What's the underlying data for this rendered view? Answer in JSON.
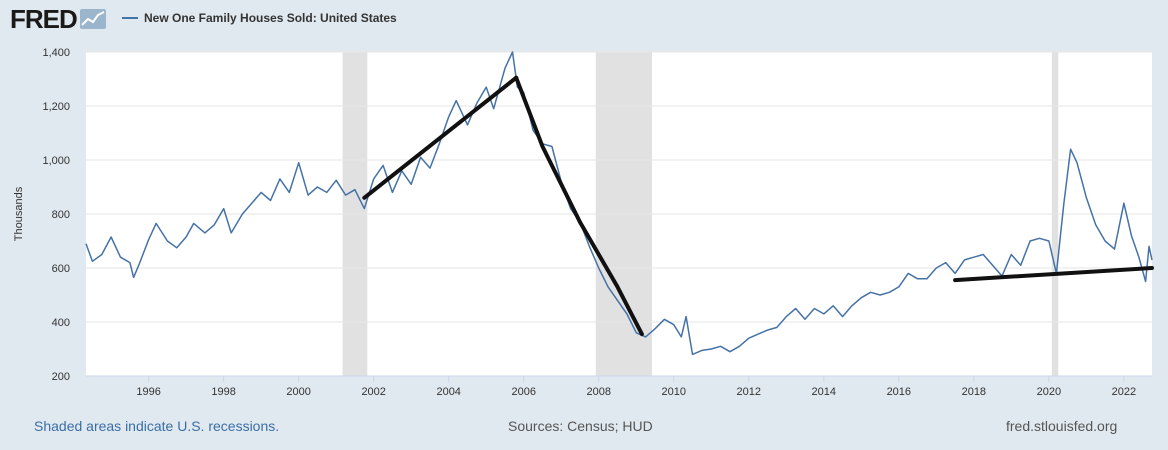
{
  "header": {
    "logo_text": "FRED",
    "legend_label": "New One Family Houses Sold: United States"
  },
  "footer": {
    "note": "Shaded areas indicate U.S. recessions.",
    "sources": "Sources: Census; HUD",
    "site": "fred.stlouisfed.org"
  },
  "colors": {
    "series": "#4572a7",
    "recession": "#e1e1e1",
    "trendline": "#111111",
    "background": "#e1e9f0",
    "plot": "#ffffff"
  },
  "chart_data": {
    "type": "line",
    "ylabel": "Thousands",
    "xlabel": "",
    "ylim": [
      200,
      1400
    ],
    "xlim": [
      1994.33,
      2022.75
    ],
    "yticks": [
      200,
      400,
      600,
      800,
      1000,
      1200,
      1400
    ],
    "ytick_labels": [
      "200",
      "400",
      "600",
      "800",
      "1,000",
      "1,200",
      "1,400"
    ],
    "xticks": [
      1996,
      1998,
      2000,
      2002,
      2004,
      2006,
      2008,
      2010,
      2012,
      2014,
      2016,
      2018,
      2020,
      2022
    ],
    "xtick_labels": [
      "1996",
      "1998",
      "2000",
      "2002",
      "2004",
      "2006",
      "2008",
      "2010",
      "2012",
      "2014",
      "2016",
      "2018",
      "2020",
      "2022"
    ],
    "grid": "horizontal",
    "recessions": [
      [
        2001.17,
        2001.83
      ],
      [
        2007.92,
        2009.42
      ],
      [
        2020.08,
        2020.25
      ]
    ],
    "series": [
      {
        "name": "New One Family Houses Sold: United States",
        "points": [
          [
            1994.33,
            690
          ],
          [
            1994.5,
            625
          ],
          [
            1994.75,
            650
          ],
          [
            1995.0,
            715
          ],
          [
            1995.25,
            640
          ],
          [
            1995.5,
            620
          ],
          [
            1995.6,
            565
          ],
          [
            1995.75,
            615
          ],
          [
            1996.0,
            705
          ],
          [
            1996.2,
            765
          ],
          [
            1996.5,
            700
          ],
          [
            1996.75,
            675
          ],
          [
            1997.0,
            715
          ],
          [
            1997.2,
            765
          ],
          [
            1997.5,
            730
          ],
          [
            1997.75,
            760
          ],
          [
            1998.0,
            820
          ],
          [
            1998.2,
            730
          ],
          [
            1998.5,
            800
          ],
          [
            1998.75,
            840
          ],
          [
            1999.0,
            880
          ],
          [
            1999.25,
            850
          ],
          [
            1999.5,
            930
          ],
          [
            1999.75,
            880
          ],
          [
            2000.0,
            990
          ],
          [
            2000.25,
            870
          ],
          [
            2000.5,
            900
          ],
          [
            2000.75,
            880
          ],
          [
            2001.0,
            925
          ],
          [
            2001.25,
            870
          ],
          [
            2001.5,
            890
          ],
          [
            2001.75,
            820
          ],
          [
            2002.0,
            930
          ],
          [
            2002.25,
            980
          ],
          [
            2002.5,
            880
          ],
          [
            2002.75,
            960
          ],
          [
            2003.0,
            910
          ],
          [
            2003.25,
            1010
          ],
          [
            2003.5,
            970
          ],
          [
            2003.75,
            1060
          ],
          [
            2004.0,
            1160
          ],
          [
            2004.2,
            1220
          ],
          [
            2004.5,
            1130
          ],
          [
            2004.75,
            1210
          ],
          [
            2005.0,
            1270
          ],
          [
            2005.2,
            1190
          ],
          [
            2005.5,
            1340
          ],
          [
            2005.7,
            1400
          ],
          [
            2005.83,
            1270
          ],
          [
            2006.0,
            1250
          ],
          [
            2006.25,
            1110
          ],
          [
            2006.5,
            1060
          ],
          [
            2006.75,
            1050
          ],
          [
            2007.0,
            920
          ],
          [
            2007.25,
            820
          ],
          [
            2007.5,
            770
          ],
          [
            2007.75,
            680
          ],
          [
            2008.0,
            600
          ],
          [
            2008.25,
            530
          ],
          [
            2008.5,
            480
          ],
          [
            2008.75,
            430
          ],
          [
            2009.0,
            360
          ],
          [
            2009.25,
            345
          ],
          [
            2009.5,
            375
          ],
          [
            2009.75,
            410
          ],
          [
            2010.0,
            390
          ],
          [
            2010.2,
            345
          ],
          [
            2010.33,
            420
          ],
          [
            2010.5,
            280
          ],
          [
            2010.75,
            295
          ],
          [
            2011.0,
            300
          ],
          [
            2011.25,
            310
          ],
          [
            2011.5,
            290
          ],
          [
            2011.75,
            310
          ],
          [
            2012.0,
            340
          ],
          [
            2012.25,
            355
          ],
          [
            2012.5,
            370
          ],
          [
            2012.75,
            380
          ],
          [
            2013.0,
            420
          ],
          [
            2013.25,
            450
          ],
          [
            2013.5,
            410
          ],
          [
            2013.75,
            450
          ],
          [
            2014.0,
            430
          ],
          [
            2014.25,
            460
          ],
          [
            2014.5,
            420
          ],
          [
            2014.75,
            460
          ],
          [
            2015.0,
            490
          ],
          [
            2015.25,
            510
          ],
          [
            2015.5,
            500
          ],
          [
            2015.75,
            510
          ],
          [
            2016.0,
            530
          ],
          [
            2016.25,
            580
          ],
          [
            2016.5,
            560
          ],
          [
            2016.75,
            560
          ],
          [
            2017.0,
            600
          ],
          [
            2017.25,
            620
          ],
          [
            2017.5,
            580
          ],
          [
            2017.75,
            630
          ],
          [
            2018.0,
            640
          ],
          [
            2018.25,
            650
          ],
          [
            2018.5,
            610
          ],
          [
            2018.75,
            570
          ],
          [
            2019.0,
            650
          ],
          [
            2019.25,
            610
          ],
          [
            2019.5,
            700
          ],
          [
            2019.75,
            710
          ],
          [
            2020.0,
            700
          ],
          [
            2020.2,
            580
          ],
          [
            2020.4,
            840
          ],
          [
            2020.58,
            1040
          ],
          [
            2020.75,
            990
          ],
          [
            2021.0,
            860
          ],
          [
            2021.25,
            760
          ],
          [
            2021.5,
            700
          ],
          [
            2021.75,
            670
          ],
          [
            2022.0,
            840
          ],
          [
            2022.2,
            720
          ],
          [
            2022.4,
            640
          ],
          [
            2022.58,
            550
          ],
          [
            2022.67,
            680
          ],
          [
            2022.75,
            630
          ]
        ]
      }
    ],
    "annotations": [
      {
        "type": "trendline",
        "points": [
          [
            2001.75,
            860
          ],
          [
            2005.8,
            1305
          ]
        ]
      },
      {
        "type": "trendline",
        "points": [
          [
            2005.8,
            1305
          ],
          [
            2006.5,
            1050
          ],
          [
            2007.5,
            770
          ],
          [
            2008.5,
            530
          ],
          [
            2009.15,
            355
          ]
        ]
      },
      {
        "type": "trendline",
        "points": [
          [
            2017.5,
            555
          ],
          [
            2022.75,
            600
          ]
        ]
      }
    ]
  }
}
